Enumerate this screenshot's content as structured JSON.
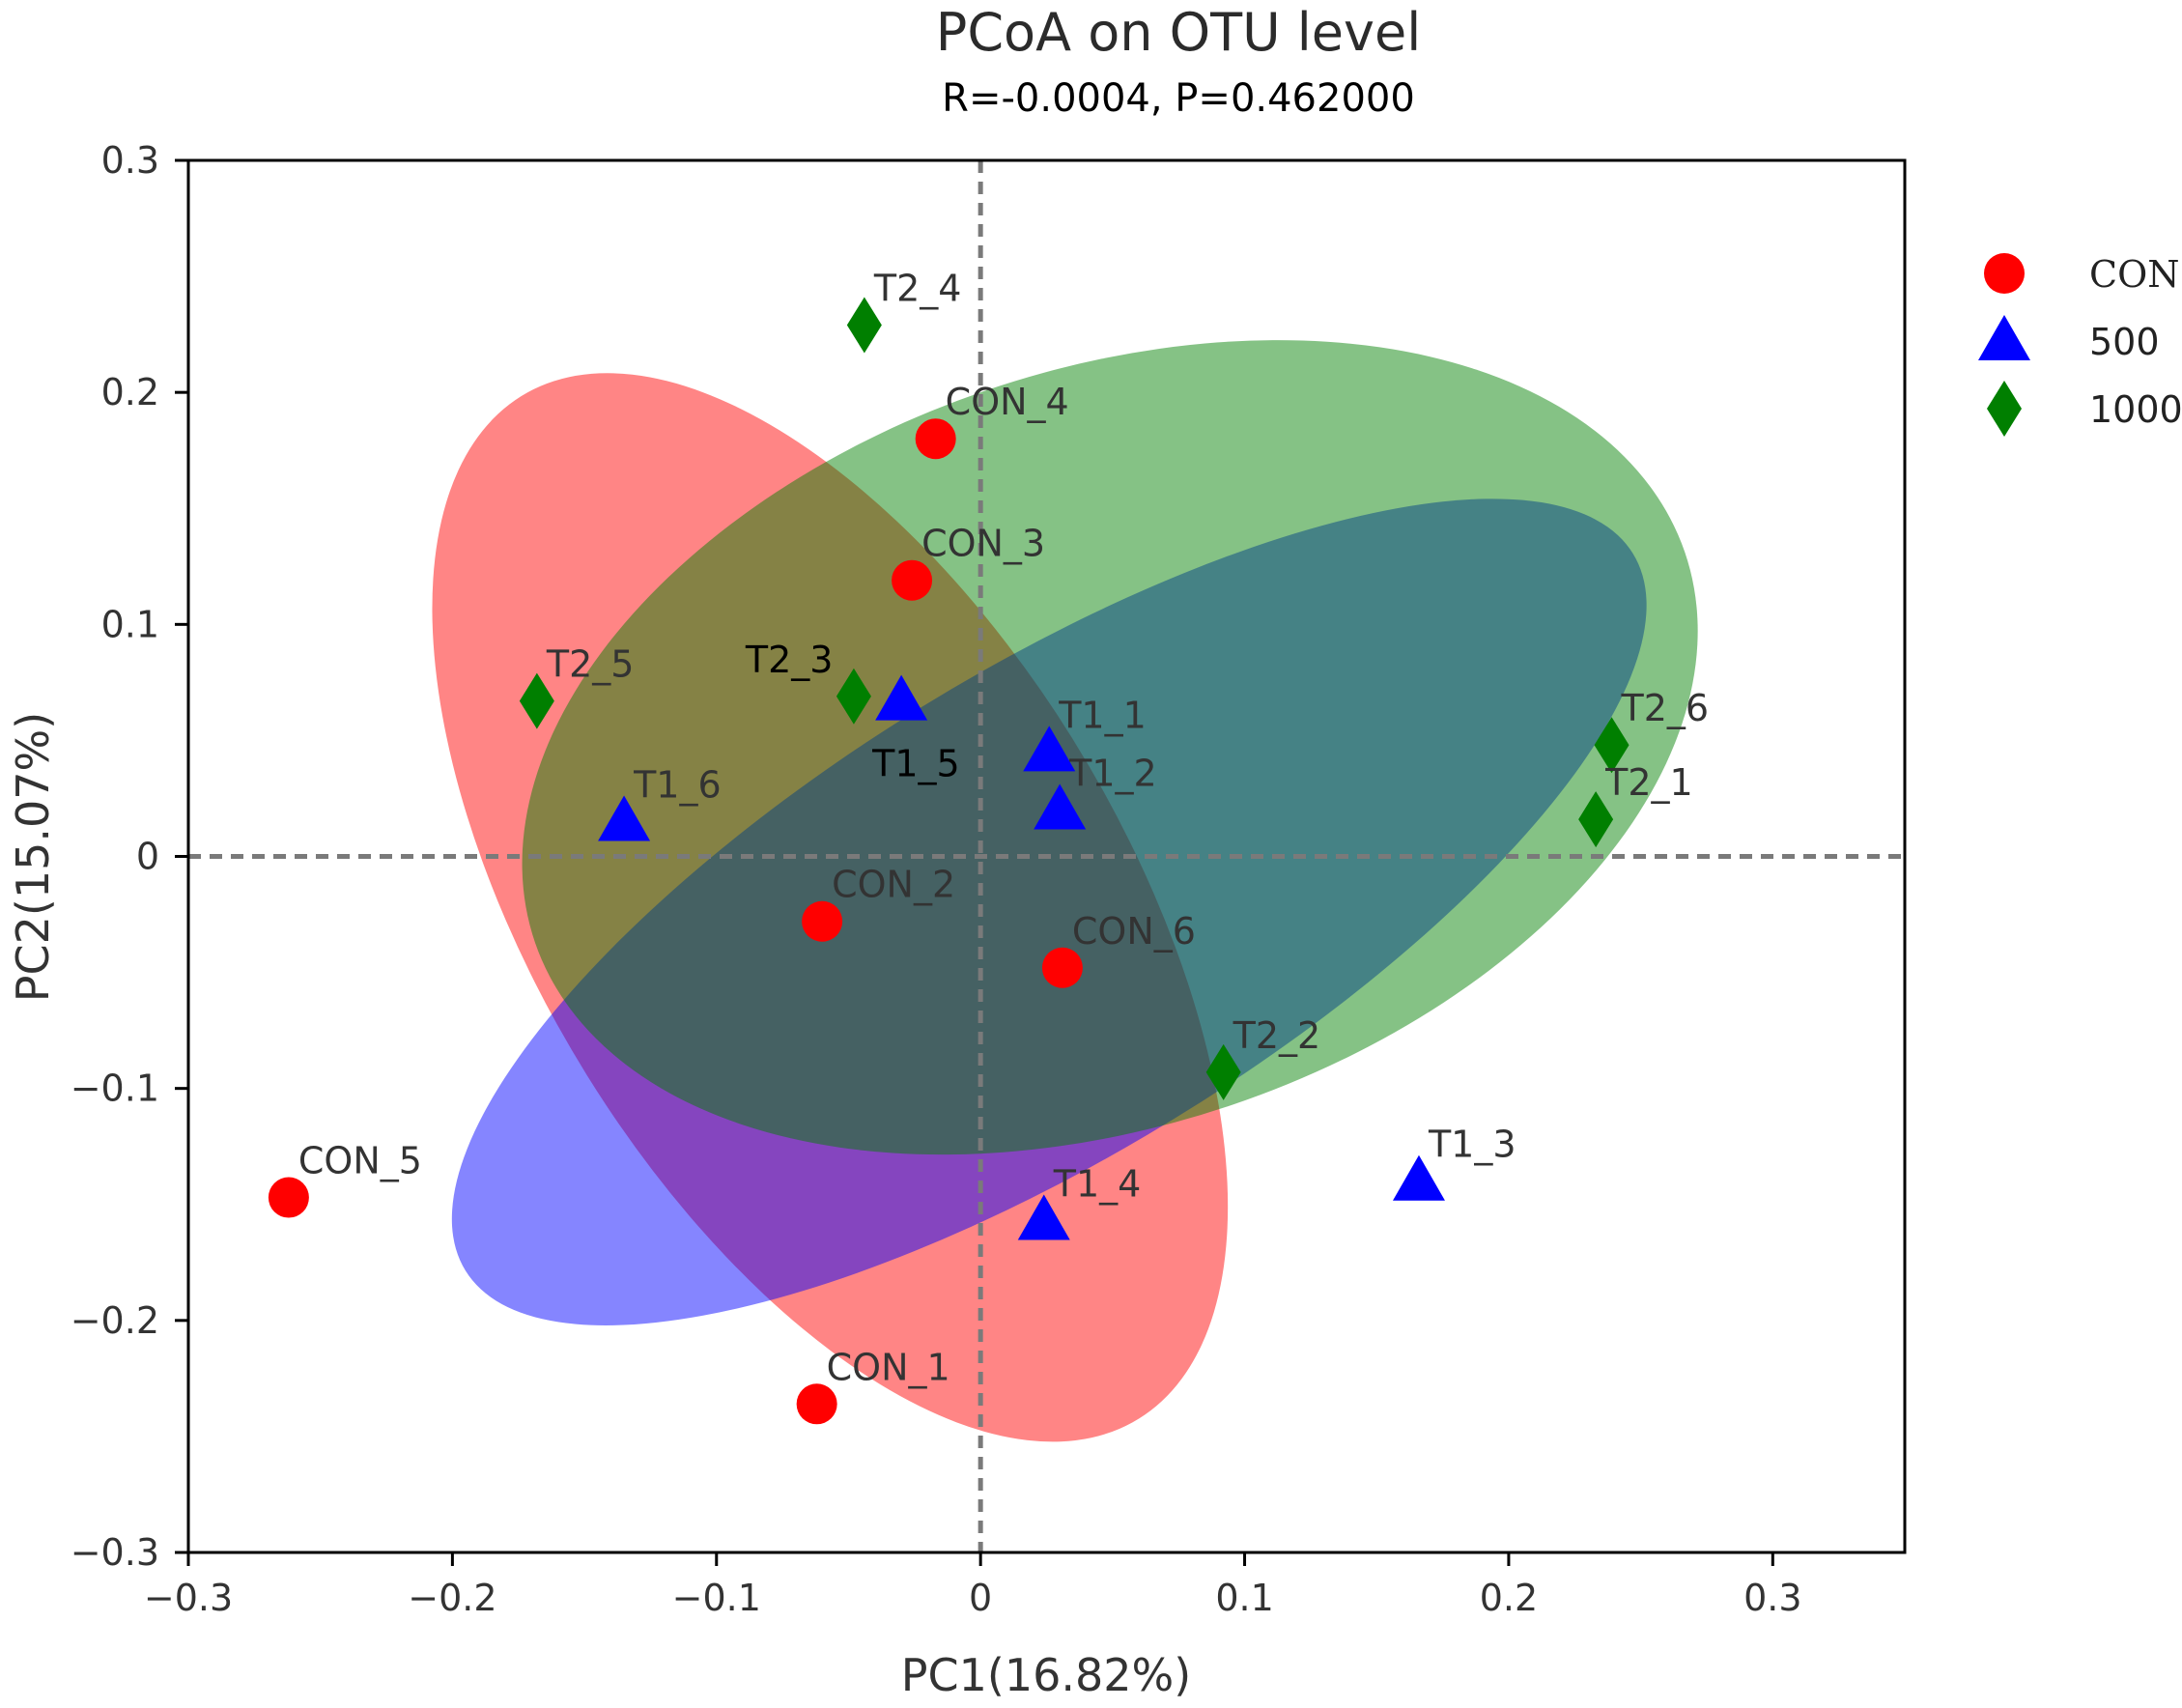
{
  "chart_data": {
    "type": "scatter",
    "title": "PCoA on OTU level",
    "subtitle": "R=-0.0004, P=0.462000",
    "xlabel": "PC1(16.82%)",
    "ylabel": "PC2(15.07%)",
    "xlim": [
      -0.3,
      0.35
    ],
    "ylim": [
      -0.3,
      0.3
    ],
    "xticks": [
      -0.3,
      -0.2,
      -0.1,
      0,
      0.1,
      0.2,
      0.3
    ],
    "yticks": [
      -0.3,
      -0.2,
      -0.1,
      0,
      0.1,
      0.2,
      0.3
    ],
    "xtick_labels": [
      "−0.3",
      "−0.2",
      "−0.1",
      "0",
      "0.1",
      "0.2",
      "0.3"
    ],
    "ytick_labels": [
      "−0.3",
      "−0.2",
      "−0.1",
      "0",
      "0.1",
      "0.2",
      "0.3"
    ],
    "reference_lines": {
      "x": 0,
      "y": 0,
      "style": "dashed"
    },
    "legend_position": "right",
    "series": [
      {
        "name": "CON",
        "marker": "circle",
        "color": "#ff0000",
        "ellipse_color": "#ff0000",
        "points": [
          {
            "label": "CON_1",
            "x": -0.062,
            "y": -0.236
          },
          {
            "label": "CON_2",
            "x": -0.06,
            "y": -0.028
          },
          {
            "label": "CON_3",
            "x": -0.026,
            "y": 0.119
          },
          {
            "label": "CON_4",
            "x": -0.017,
            "y": 0.18
          },
          {
            "label": "CON_5",
            "x": -0.262,
            "y": -0.147
          },
          {
            "label": "CON_6",
            "x": 0.031,
            "y": -0.048
          }
        ],
        "ellipse": {
          "cx": -0.057,
          "cy": -0.022,
          "rx": 0.25,
          "ry": 0.115,
          "angle_deg": -64
        }
      },
      {
        "name": "500",
        "marker": "triangle",
        "color": "#0000ff",
        "ellipse_color": "#0000ff",
        "points": [
          {
            "label": "T1_1",
            "x": 0.026,
            "y": 0.045
          },
          {
            "label": "T1_2",
            "x": 0.03,
            "y": 0.02
          },
          {
            "label": "T1_3",
            "x": 0.166,
            "y": -0.14
          },
          {
            "label": "T1_4",
            "x": 0.024,
            "y": -0.157
          },
          {
            "label": "T1_5",
            "x": -0.03,
            "y": 0.067
          },
          {
            "label": "T1_6",
            "x": -0.135,
            "y": 0.015
          }
        ],
        "ellipse": {
          "cx": 0.026,
          "cy": -0.024,
          "rx": 0.27,
          "ry": 0.1,
          "angle_deg": 36
        }
      },
      {
        "name": "1000",
        "marker": "diamond",
        "color": "#007f00",
        "ellipse_color": "#008000",
        "points": [
          {
            "label": "T2_1",
            "x": 0.233,
            "y": 0.016
          },
          {
            "label": "T2_2",
            "x": 0.092,
            "y": -0.093
          },
          {
            "label": "T2_3",
            "x": -0.048,
            "y": 0.069
          },
          {
            "label": "T2_4",
            "x": -0.044,
            "y": 0.229
          },
          {
            "label": "T2_5",
            "x": -0.168,
            "y": 0.067
          },
          {
            "label": "T2_6",
            "x": 0.239,
            "y": 0.048
          }
        ],
        "ellipse": {
          "cx": 0.049,
          "cy": 0.047,
          "rx": 0.234,
          "ry": 0.16,
          "angle_deg": 25
        }
      }
    ]
  }
}
